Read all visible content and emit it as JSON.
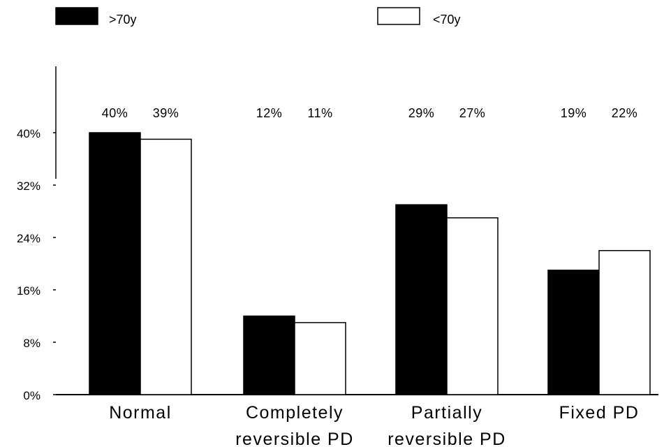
{
  "chart_data": {
    "type": "bar",
    "categories": [
      [
        "Normal"
      ],
      [
        "Completely",
        "reversible PD"
      ],
      [
        "Partially",
        "reversible PD"
      ],
      [
        "Fixed PD"
      ]
    ],
    "series": [
      {
        "name": ">70y",
        "values": [
          40,
          12,
          29,
          19
        ],
        "labels": [
          "40%",
          "12%",
          "29%",
          "19%"
        ],
        "color": "#000000"
      },
      {
        "name": "<70y",
        "values": [
          39,
          11,
          27,
          22
        ],
        "labels": [
          "39%",
          "11%",
          "27%",
          "22%"
        ],
        "color": "#ffffff"
      }
    ],
    "yticks": [
      0,
      8,
      16,
      24,
      32,
      40
    ],
    "ytick_labels": [
      "0%",
      "8%",
      "16%",
      "24%",
      "32%",
      "40%"
    ],
    "ylim": [
      0,
      50
    ],
    "title": "",
    "xlabel": "",
    "ylabel": "",
    "grid": false,
    "legend_position": "top"
  }
}
